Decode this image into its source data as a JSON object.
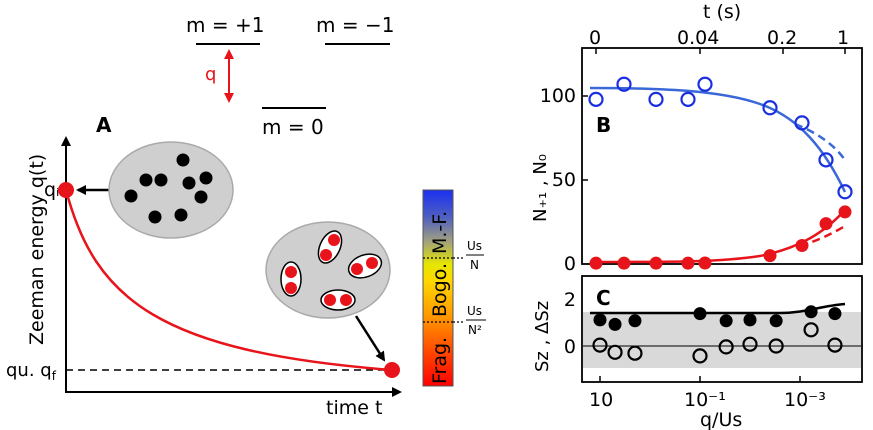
{
  "figure": {
    "colors": {
      "red": "#e8141b",
      "blue": "#3a68d8",
      "blue_marker": "#1a2fe0",
      "gray_fill": "#cfcfcf",
      "gray_band": "#d9d9d9",
      "black": "#000000"
    },
    "panel_a": {
      "label": "A",
      "levels": {
        "plus": "m = +1",
        "minus": "m = −1",
        "zero": "m = 0"
      },
      "q_label": "q",
      "y_axis_label": "Zeeman energy q(t)",
      "x_axis_label": "time t",
      "qi_label": "qᵢ",
      "qf_label": "qu. q",
      "qf_sub": "f",
      "colorbar": {
        "labels": [
          "Frag.",
          "Bogo.",
          "M.-F."
        ],
        "tick_top": {
          "num": "Us",
          "den": "N"
        },
        "tick_bottom": {
          "num": "Us",
          "den": "N²"
        },
        "colors": [
          "#ff0000",
          "#ff5a00",
          "#ffa000",
          "#ffd800",
          "#e8e800",
          "#9a9a7a",
          "#4a5ac8",
          "#1a30f0"
        ]
      }
    },
    "panel_b": {
      "label": "B",
      "top_axis_label": "t (s)",
      "top_ticks": [
        "0",
        "0.04",
        "0.2",
        "1"
      ],
      "ylabel": "N₊₁ ,  N₀",
      "y_ticks": [
        "0",
        "50",
        "100"
      ]
    },
    "panel_c": {
      "label": "C",
      "ylabel": "Sz , ΔSz",
      "y_ticks": [
        "0",
        "2"
      ],
      "x_axis_label": "q/Us",
      "x_ticks": [
        "10",
        "10⁻¹",
        "10⁻³"
      ]
    }
  },
  "chart_data": [
    {
      "type": "scatter",
      "panel": "B",
      "xlabel": "t (s)",
      "ylabel": "N₊₁ ,  N₀",
      "ylim": [
        0,
        118
      ],
      "x_ticks": [
        "0",
        "0.04",
        "0.2",
        "1"
      ],
      "series": [
        {
          "marker": "open-circle",
          "color": "#1a2fe0",
          "points": [
            [
              0.0,
              98
            ],
            [
              0.012,
              107
            ],
            [
              0.024,
              98
            ],
            [
              0.038,
              98
            ],
            [
              0.05,
              107
            ],
            [
              0.2,
              93
            ],
            [
              0.4,
              84
            ],
            [
              0.6,
              62
            ],
            [
              1.0,
              43
            ]
          ]
        },
        {
          "marker": "filled-circle",
          "color": "#e8141b",
          "points": [
            [
              0.0,
              0.5
            ],
            [
              0.012,
              0.5
            ],
            [
              0.024,
              0.5
            ],
            [
              0.038,
              0.5
            ],
            [
              0.05,
              0.6
            ],
            [
              0.2,
              5
            ],
            [
              0.4,
              11
            ],
            [
              0.6,
              24
            ],
            [
              1.0,
              31
            ]
          ]
        }
      ]
    },
    {
      "type": "scatter",
      "panel": "C",
      "xlabel": "q/Us",
      "ylabel": "Sz , ΔSz",
      "ylim": [
        -0.9,
        2.6
      ],
      "x_ticks": [
        "10",
        "10⁻¹",
        "10⁻³"
      ],
      "series": [
        {
          "marker": "filled-circle",
          "color": "#000000",
          "points": [
            [
              10,
              1.45
            ],
            [
              5,
              1.2
            ],
            [
              2,
              1.4
            ],
            [
              0.1,
              1.8
            ],
            [
              0.03,
              1.4
            ],
            [
              0.01,
              1.45
            ],
            [
              0.003,
              1.4
            ],
            [
              0.0006,
              1.9
            ],
            [
              0.0002,
              1.8
            ]
          ]
        },
        {
          "marker": "open-circle",
          "color": "#000000",
          "points": [
            [
              10,
              0.05
            ],
            [
              5,
              -0.35
            ],
            [
              2,
              -0.4
            ],
            [
              0.1,
              -0.55
            ],
            [
              0.03,
              -0.05
            ],
            [
              0.01,
              0.1
            ],
            [
              0.003,
              0.0
            ],
            [
              0.0006,
              0.9
            ],
            [
              0.0002,
              0.05
            ]
          ]
        }
      ]
    }
  ]
}
